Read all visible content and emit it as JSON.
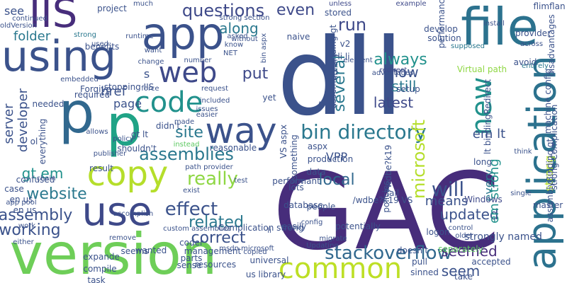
{
  "cloud": {
    "background": "#ffffff",
    "words": [
      {
        "text": "GAC",
        "color": "#472d7b",
        "vertical": false
      },
      {
        "text": "dll",
        "color": "#3b528b",
        "vertical": false
      },
      {
        "text": "version",
        "color": "#6ece58",
        "vertical": false
      },
      {
        "text": "p",
        "color": "#20a386",
        "vertical": false
      },
      {
        "text": "p",
        "color": "#31688e",
        "vertical": false
      },
      {
        "text": "application",
        "color": "#2c728e",
        "vertical": true
      },
      {
        "text": "file",
        "color": "#2c728e",
        "vertical": false
      },
      {
        "text": "app",
        "color": "#3b528b",
        "vertical": false
      },
      {
        "text": "using",
        "color": "#3b528b",
        "vertical": false
      },
      {
        "text": "use",
        "color": "#3e4989",
        "vertical": false
      },
      {
        "text": "copy",
        "color": "#b5de2b",
        "vertical": false
      },
      {
        "text": "IIS",
        "color": "#472d7b",
        "vertical": false
      },
      {
        "text": "code",
        "color": "#21918c",
        "vertical": false
      },
      {
        "text": "way",
        "color": "#3b528b",
        "vertical": false
      },
      {
        "text": "web",
        "color": "#3e4989",
        "vertical": false
      },
      {
        "text": "new",
        "color": "#21918c",
        "vertical": true
      },
      {
        "text": "common",
        "color": "#bddf26",
        "vertical": false
      },
      {
        "text": "bin directory",
        "color": "#2a788e",
        "vertical": false
      },
      {
        "text": "assemblies",
        "color": "#2a788e",
        "vertical": false
      },
      {
        "text": "effect",
        "color": "#3b528b",
        "vertical": false
      },
      {
        "text": "website",
        "color": "#2a788e",
        "vertical": false
      },
      {
        "text": "stackoverflow",
        "color": "#31688e",
        "vertical": false
      },
      {
        "text": "questions",
        "color": "#3e4989",
        "vertical": false
      },
      {
        "text": "really",
        "color": "#8fd744",
        "vertical": false
      },
      {
        "text": "correct",
        "color": "#3b528b",
        "vertical": false
      },
      {
        "text": "related",
        "color": "#2a788e",
        "vertical": false
      },
      {
        "text": "always",
        "color": "#21918c",
        "vertical": false
      },
      {
        "text": "local",
        "color": "#31688e",
        "vertical": false
      },
      {
        "text": "latest",
        "color": "#3e4989",
        "vertical": false
      },
      {
        "text": "now",
        "color": "#3b528b",
        "vertical": false
      },
      {
        "text": "still",
        "color": "#2a788e",
        "vertical": false
      },
      {
        "text": "updated",
        "color": "#3b528b",
        "vertical": false
      },
      {
        "text": "seemed",
        "color": "#472d7b",
        "vertical": false
      },
      {
        "text": "seem",
        "color": "#3b528b",
        "vertical": false
      },
      {
        "text": "put",
        "color": "#3e4989",
        "vertical": false
      },
      {
        "text": "run",
        "color": "#3e4989",
        "vertical": false
      },
      {
        "text": "even",
        "color": "#3e4989",
        "vertical": false
      },
      {
        "text": "along",
        "color": "#2a788e",
        "vertical": false
      },
      {
        "text": "working",
        "color": "#3b528b",
        "vertical": false
      },
      {
        "text": "assembly",
        "color": "#3b528b",
        "vertical": false
      },
      {
        "text": "site",
        "color": "#2a788e",
        "vertical": false
      },
      {
        "text": "page",
        "color": "#3b528b",
        "vertical": false
      },
      {
        "text": "href",
        "color": "#3b528b",
        "vertical": false
      },
      {
        "text": "folder",
        "color": "#2a788e",
        "vertical": false
      },
      {
        "text": "see",
        "color": "#3b528b",
        "vertical": false
      },
      {
        "text": "will",
        "color": "#3b528b",
        "vertical": false
      },
      {
        "text": "means",
        "color": "#3b528b",
        "vertical": false
      },
      {
        "text": "several",
        "color": "#2a788e",
        "vertical": true
      },
      {
        "text": "microsoft",
        "color": "#b5de2b",
        "vertical": true
      },
      {
        "text": "every",
        "color": "#2a788e",
        "vertical": true
      },
      {
        "text": "server",
        "color": "#3b528b",
        "vertical": true
      },
      {
        "text": "developer",
        "color": "#3b528b",
        "vertical": true
      },
      {
        "text": "gt em",
        "color": "#21918c",
        "vertical": false
      },
      {
        "text": "em lt",
        "color": "#3b528b",
        "vertical": false
      },
      {
        "text": "em strong",
        "color": "#21918c",
        "vertical": true
      },
      {
        "text": "strong",
        "color": "#b5de2b",
        "vertical": true
      },
      {
        "text": "VPP",
        "color": "#3b528b",
        "vertical": false
      },
      {
        "text": "s",
        "color": "#3b528b",
        "vertical": false
      },
      {
        "text": "gt lt",
        "color": "#3b528b",
        "vertical": false
      },
      {
        "text": "Virtual path",
        "color": "#8fd744",
        "vertical": false
      },
      {
        "text": "strongly named",
        "color": "#3b528b",
        "vertical": false
      },
      {
        "text": "separately",
        "color": "#5ec962",
        "vertical": false
      },
      {
        "text": "Windows",
        "color": "#3e4989",
        "vertical": false
      },
      {
        "text": "li li",
        "color": "#3b528b",
        "vertical": false
      },
      {
        "text": "advantages",
        "color": "#3b528b",
        "vertical": false
      },
      {
        "text": "element",
        "color": "#3b528b",
        "vertical": false
      },
      {
        "text": "redirect",
        "color": "#3e4989",
        "vertical": false
      },
      {
        "text": "supposed",
        "color": "#2a788e",
        "vertical": false
      },
      {
        "text": "across",
        "color": "#3b528b",
        "vertical": false
      },
      {
        "text": "install",
        "color": "#3b528b",
        "vertical": false
      },
      {
        "text": "entirely",
        "color": "#2a788e",
        "vertical": false
      },
      {
        "text": "example",
        "color": "#3e4989",
        "vertical": false
      },
      {
        "text": "unless",
        "color": "#3e4989",
        "vertical": false
      },
      {
        "text": "asked",
        "color": "#3b528b",
        "vertical": false
      },
      {
        "text": "know",
        "color": "#3b528b",
        "vertical": false
      },
      {
        "text": "NET",
        "color": "#3b528b",
        "vertical": false
      },
      {
        "text": "strong",
        "color": "#2a788e",
        "vertical": false
      },
      {
        "text": "runtime",
        "color": "#3b528b",
        "vertical": false
      },
      {
        "text": "want",
        "color": "#3b528b",
        "vertical": false
      },
      {
        "text": "change",
        "color": "#3b528b",
        "vertical": false
      },
      {
        "text": "number",
        "color": "#3b528b",
        "vertical": false
      },
      {
        "text": "force",
        "color": "#3b528b",
        "vertical": false
      },
      {
        "text": "request",
        "color": "#3b528b",
        "vertical": false
      },
      {
        "text": "included",
        "color": "#3b528b",
        "vertical": false
      },
      {
        "text": "issues",
        "color": "#3b528b",
        "vertical": false
      },
      {
        "text": "easier",
        "color": "#3b528b",
        "vertical": false
      },
      {
        "text": "made",
        "color": "#3b528b",
        "vertical": false
      },
      {
        "text": "instead",
        "color": "#5ec962",
        "vertical": false
      },
      {
        "text": "policy",
        "color": "#3b528b",
        "vertical": false
      },
      {
        "text": "allows",
        "color": "#3b528b",
        "vertical": false
      },
      {
        "text": "publisher",
        "color": "#3b528b",
        "vertical": false
      },
      {
        "text": "path provider",
        "color": "#3b528b",
        "vertical": false
      },
      {
        "text": "chain",
        "color": "#3b528b",
        "vertical": false
      },
      {
        "text": "exist",
        "color": "#3b528b",
        "vertical": false
      },
      {
        "text": "test",
        "color": "#3b528b",
        "vertical": false
      },
      {
        "text": "li",
        "color": "#3b528b",
        "vertical": false
      },
      {
        "text": "config",
        "color": "#3b528b",
        "vertical": false
      },
      {
        "text": "migrate",
        "color": "#3b528b",
        "vertical": false
      },
      {
        "text": "copied",
        "color": "#3b528b",
        "vertical": false
      },
      {
        "text": "Updating",
        "color": "#3b528b",
        "vertical": false
      },
      {
        "text": "one",
        "color": "#3b528b",
        "vertical": false
      },
      {
        "text": "control",
        "color": "#3b528b",
        "vertical": false
      },
      {
        "text": "older",
        "color": "#3b528b",
        "vertical": false
      },
      {
        "text": "single",
        "color": "#3b528b",
        "vertical": false
      },
      {
        "text": "think",
        "color": "#3b528b",
        "vertical": false
      },
      {
        "text": "app pool",
        "color": "#3b528b",
        "vertical": false
      },
      {
        "text": "work",
        "color": "#3b528b",
        "vertical": false
      },
      {
        "text": "either",
        "color": "#3b528b",
        "vertical": false
      },
      {
        "text": "remove",
        "color": "#3b528b",
        "vertical": false
      },
      {
        "text": "accomplish",
        "color": "#3b528b",
        "vertical": false
      },
      {
        "text": "msdn microsoft",
        "color": "#3b528b",
        "vertical": false
      },
      {
        "text": "custom assemblies",
        "color": "#3b528b",
        "vertical": false
      },
      {
        "text": "embedded",
        "color": "#3b528b",
        "vertical": false
      },
      {
        "text": "used",
        "color": "#3b528b",
        "vertical": false
      },
      {
        "text": "continued",
        "color": "#3b528b",
        "vertical": false
      },
      {
        "text": "oldVersion",
        "color": "#3b528b",
        "vertical": false
      },
      {
        "text": "much",
        "color": "#3b528b",
        "vertical": false
      },
      {
        "text": "strong section",
        "color": "#3b528b",
        "vertical": false
      },
      {
        "text": "without",
        "color": "#3b528b",
        "vertical": false
      },
      {
        "text": "bin aspx",
        "color": "#3b528b",
        "vertical": true
      },
      {
        "text": "something",
        "color": "#3b528b",
        "vertical": true
      },
      {
        "text": "try",
        "color": "#3b528b",
        "vertical": false
      },
      {
        "text": "v2",
        "color": "#3b528b",
        "vertical": false
      },
      {
        "text": "aspx",
        "color": "#3b528b",
        "vertical": false
      },
      {
        "text": "yet",
        "color": "#3b528b",
        "vertical": false
      },
      {
        "text": "ol",
        "color": "#3b528b",
        "vertical": false
      },
      {
        "text": "everything",
        "color": "#3b528b",
        "vertical": true
      },
      {
        "text": "disadvantages",
        "color": "#3b528b",
        "vertical": true
      },
      {
        "text": "lt bindingRedirect",
        "color": "#3b528b",
        "vertical": true
      },
      {
        "text": "machine config",
        "color": "#3b528b",
        "vertical": true
      },
      {
        "text": "strong Complication",
        "color": "#3b528b",
        "vertical": true
      },
      {
        "text": "Complication strong",
        "color": "#3b528b",
        "vertical": false
      },
      {
        "text": "fail",
        "color": "#3b528b",
        "vertical": false
      },
      {
        "text": "universal",
        "color": "#3b528b",
        "vertical": false
      },
      {
        "text": "us library",
        "color": "#3b528b",
        "vertical": false
      },
      {
        "text": "doesn't",
        "color": "#3b528b",
        "vertical": false
      },
      {
        "text": "pull",
        "color": "#3b528b",
        "vertical": false
      },
      {
        "text": "sinned",
        "color": "#3b528b",
        "vertical": false
      },
      {
        "text": "take",
        "color": "#3b528b",
        "vertical": false
      },
      {
        "text": "coder",
        "color": "#3b528b",
        "vertical": false
      },
      {
        "text": "people",
        "color": "#3b528b",
        "vertical": false
      },
      {
        "text": "database",
        "color": "#3b528b",
        "vertical": false
      },
      {
        "text": "easily",
        "color": "#3b528b",
        "vertical": false
      },
      {
        "text": "logon",
        "color": "#3b528b",
        "vertical": false
      },
      {
        "text": "long",
        "color": "#3b528b",
        "vertical": false
      },
      {
        "text": "setup",
        "color": "#3b528b",
        "vertical": false
      },
      {
        "text": "solution",
        "color": "#3b528b",
        "vertical": false
      },
      {
        "text": "develop",
        "color": "#3b528b",
        "vertical": false
      },
      {
        "text": "stored",
        "color": "#3b528b",
        "vertical": false
      },
      {
        "text": "naive",
        "color": "#3b528b",
        "vertical": false
      },
      {
        "text": "project",
        "color": "#3b528b",
        "vertical": false
      },
      {
        "text": "benefits",
        "color": "#3b528b",
        "vertical": false
      },
      {
        "text": "required",
        "color": "#3b528b",
        "vertical": false
      },
      {
        "text": "stopping IIS",
        "color": "#3b528b",
        "vertical": false
      },
      {
        "text": "Forgive",
        "color": "#3b528b",
        "vertical": false
      },
      {
        "text": "needed",
        "color": "#3b528b",
        "vertical": false
      },
      {
        "text": "confused",
        "color": "#3b528b",
        "vertical": false
      },
      {
        "text": "case",
        "color": "#3b528b",
        "vertical": false
      },
      {
        "text": "en us",
        "color": "#3b528b",
        "vertical": false
      },
      {
        "text": "expande",
        "color": "#3b528b",
        "vertical": false
      },
      {
        "text": "compile",
        "color": "#3b528b",
        "vertical": false
      },
      {
        "text": "task",
        "color": "#3b528b",
        "vertical": false
      },
      {
        "text": "seems",
        "color": "#3b528b",
        "vertical": false
      },
      {
        "text": "wanted",
        "color": "#3b528b",
        "vertical": false
      },
      {
        "text": "parts",
        "color": "#3b528b",
        "vertical": false
      },
      {
        "text": "management",
        "color": "#3b528b",
        "vertical": false
      },
      {
        "text": "sense",
        "color": "#3b528b",
        "vertical": false
      },
      {
        "text": "resources",
        "color": "#3b528b",
        "vertical": false
      },
      {
        "text": "reasonable",
        "color": "#3b528b",
        "vertical": false
      },
      {
        "text": "lots",
        "color": "#3b528b",
        "vertical": false
      },
      {
        "text": "data",
        "color": "#3b528b",
        "vertical": false
      },
      {
        "text": "production",
        "color": "#3b528b",
        "vertical": false
      },
      {
        "text": "performant",
        "color": "#3b528b",
        "vertical": false
      },
      {
        "text": "potentially",
        "color": "#3b528b",
        "vertical": false
      },
      {
        "text": "accepted",
        "color": "#3b528b",
        "vertical": false
      },
      {
        "text": "master",
        "color": "#3b528b",
        "vertical": false
      },
      {
        "text": "avoid",
        "color": "#3b528b",
        "vertical": false
      },
      {
        "text": "provider",
        "color": "#3b528b",
        "vertical": false
      },
      {
        "text": "flimflan",
        "color": "#3b528b",
        "vertical": false
      },
      {
        "text": "shouldn't",
        "color": "#3b528b",
        "vertical": false
      },
      {
        "text": "didn't",
        "color": "#3b528b",
        "vertical": false
      },
      {
        "text": "result",
        "color": "#3b528b",
        "vertical": false
      },
      {
        "text": "en us",
        "color": "#3b528b",
        "vertical": false
      },
      {
        "text": "/wdbe?k19 VS",
        "color": "#3b528b",
        "vertical": false
      },
      {
        "text": "7wdbe?k19",
        "color": "#3b528b",
        "vertical": true
      },
      {
        "text": "library",
        "color": "#3b528b",
        "vertical": true
      },
      {
        "text": "assemblyBinding gt",
        "color": "#3b528b",
        "vertical": true
      },
      {
        "text": "assemblyBinding gt",
        "color": "#3b528b",
        "vertical": true
      },
      {
        "text": "policies",
        "color": "#3b528b",
        "vertical": true
      },
      {
        "text": "performance",
        "color": "#3b528b",
        "vertical": true
      },
      {
        "text": "VS aspx",
        "color": "#3b528b",
        "vertical": true
      }
    ]
  }
}
